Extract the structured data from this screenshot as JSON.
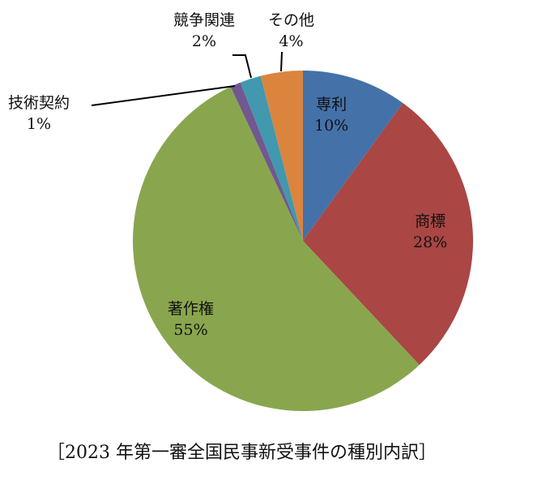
{
  "chart_data": {
    "type": "pie",
    "title": "",
    "caption": "［2023 年第一審全国民事新受事件の種別内訳］",
    "categories": [
      "専利",
      "商標",
      "著作権",
      "技術契約",
      "競争関連",
      "その他"
    ],
    "values": [
      10,
      28,
      55,
      1,
      2,
      4
    ],
    "value_labels": [
      "10%",
      "28%",
      "55%",
      "1%",
      "2%",
      "4%"
    ],
    "colors": [
      "#4571a9",
      "#aa4644",
      "#89a64e",
      "#71588f",
      "#4198af",
      "#db843d"
    ],
    "start_angle_deg": 0,
    "direction": "clockwise",
    "legend": "none"
  },
  "labels": {
    "senri": {
      "name": "専利",
      "pct": "10%"
    },
    "shohyo": {
      "name": "商標",
      "pct": "28%"
    },
    "chosakuken": {
      "name": "著作権",
      "pct": "55%"
    },
    "gijutsu": {
      "name": "技術契約",
      "pct": "1%"
    },
    "kyoso": {
      "name": "競争関連",
      "pct": "2%"
    },
    "sonota": {
      "name": "その他",
      "pct": "4%"
    }
  },
  "caption": "［2023 年第一審全国民事新受事件の種別内訳］"
}
